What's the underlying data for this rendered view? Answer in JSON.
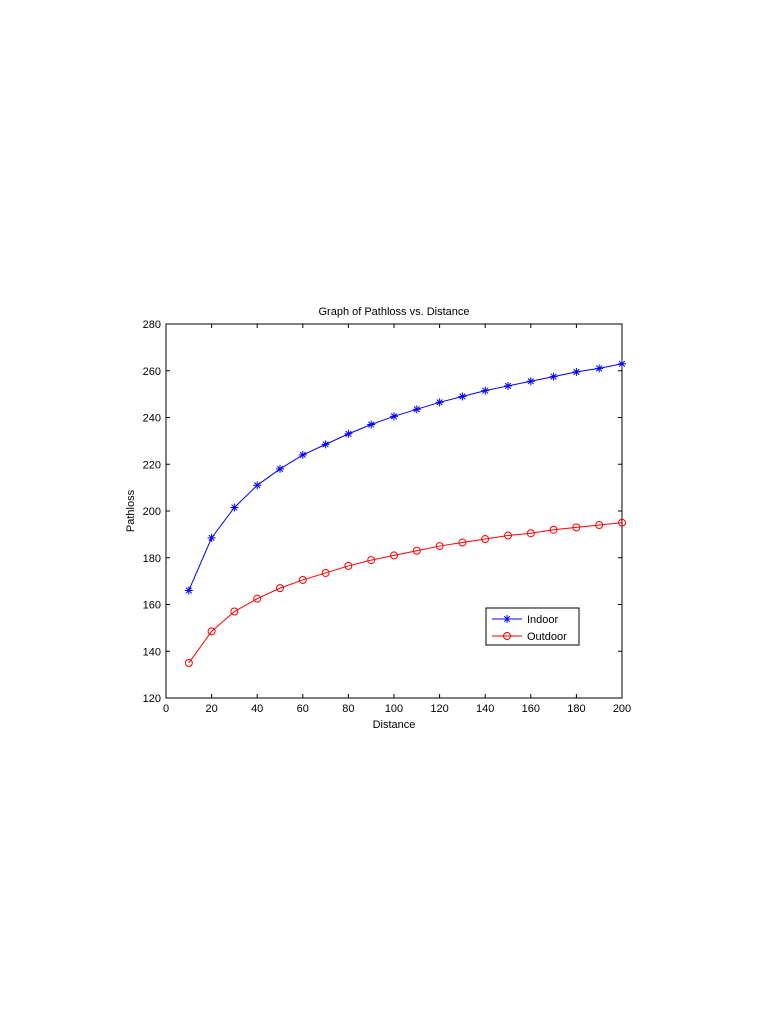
{
  "chart_data": {
    "type": "line",
    "title": "Graph of Pathloss vs. Distance",
    "xlabel": "Distance",
    "ylabel": "Pathloss",
    "xlim": [
      0,
      200
    ],
    "ylim": [
      120,
      280
    ],
    "xticks": [
      0,
      20,
      40,
      60,
      80,
      100,
      120,
      140,
      160,
      180,
      200
    ],
    "yticks": [
      120,
      140,
      160,
      180,
      200,
      220,
      240,
      260,
      280
    ],
    "grid": false,
    "legend_position": "lower-right",
    "x": [
      10,
      20,
      30,
      40,
      50,
      60,
      70,
      80,
      90,
      100,
      110,
      120,
      130,
      140,
      150,
      160,
      170,
      180,
      190,
      200
    ],
    "series": [
      {
        "name": "Indoor",
        "color": "#0000ff",
        "marker": "star",
        "values": [
          166,
          188.5,
          201.5,
          211,
          218,
          224,
          228.5,
          233,
          237,
          240.5,
          243.5,
          246.5,
          249,
          251.5,
          253.5,
          255.5,
          257.5,
          259.5,
          261,
          263
        ]
      },
      {
        "name": "Outdoor",
        "color": "#ff0000",
        "marker": "circle",
        "values": [
          135,
          148.5,
          157,
          162.5,
          167,
          170.5,
          173.5,
          176.5,
          179,
          181,
          183,
          185,
          186.5,
          188,
          189.5,
          190.5,
          192,
          193,
          194,
          195
        ]
      }
    ]
  }
}
